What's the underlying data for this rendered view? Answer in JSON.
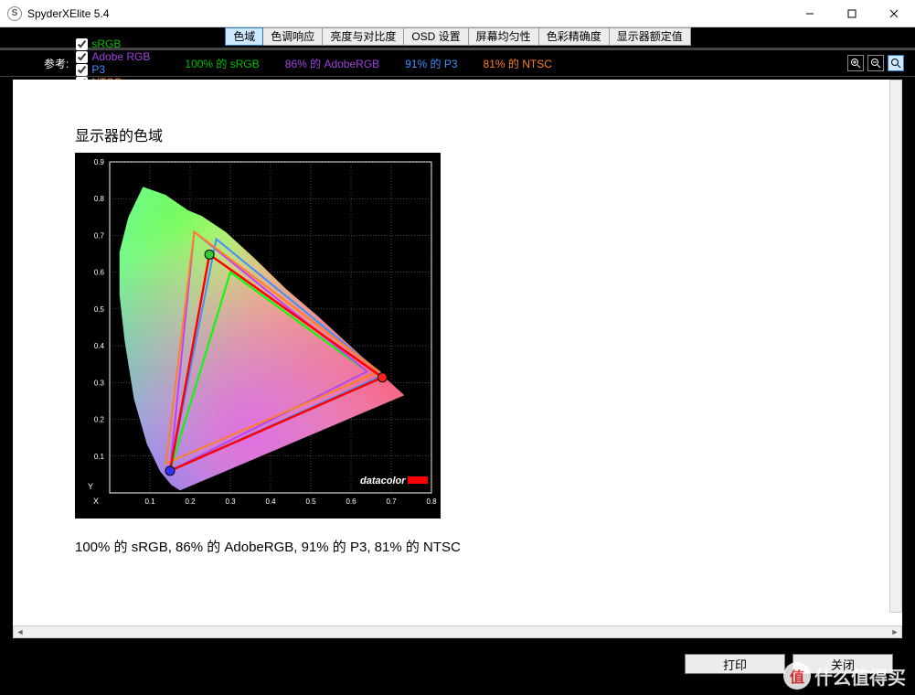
{
  "window": {
    "title": "SpyderXElite 5.4",
    "icon_letter": "S"
  },
  "tabs": [
    {
      "label": "色域",
      "active": true
    },
    {
      "label": "色调响应",
      "active": false
    },
    {
      "label": "亮度与对比度",
      "active": false
    },
    {
      "label": "OSD 设置",
      "active": false
    },
    {
      "label": "屏幕均匀性",
      "active": false
    },
    {
      "label": "色彩精确度",
      "active": false
    },
    {
      "label": "显示器额定值",
      "active": false
    }
  ],
  "reference": {
    "label": "参考:",
    "items": [
      {
        "name": "sRGB",
        "color": "#00c000",
        "checked": true
      },
      {
        "name": "Adobe RGB",
        "color": "#a040e0",
        "checked": true
      },
      {
        "name": "P3",
        "color": "#4090ff",
        "checked": true
      },
      {
        "name": "NTSC",
        "color": "#ff7f27",
        "checked": true
      }
    ],
    "percentages": [
      {
        "text": "100% 的 sRGB",
        "color": "#00c000"
      },
      {
        "text": "86% 的 AdobeRGB",
        "color": "#a040e0"
      },
      {
        "text": "91% 的 P3",
        "color": "#4090ff"
      },
      {
        "text": "81% 的 NTSC",
        "color": "#ff7f27"
      }
    ]
  },
  "page": {
    "heading": "显示器的色域",
    "summary": "100% 的 sRGB, 86% 的 AdobeRGB, 91% 的 P3, 81% 的 NTSC"
  },
  "chart": {
    "type": "cie-xy-chromaticity",
    "background_color": "#000000",
    "plot_background": "#000000",
    "axis_color": "#ffffff",
    "grid_color": "#888888",
    "tick_fontsize": 8,
    "x_label": "X",
    "y_label": "Y",
    "xlim": [
      0.0,
      0.8
    ],
    "ylim": [
      0.0,
      0.9
    ],
    "xticks": [
      0.1,
      0.2,
      0.3,
      0.4,
      0.5,
      0.6,
      0.7,
      0.8
    ],
    "yticks": [
      0.1,
      0.2,
      0.3,
      0.4,
      0.5,
      0.6,
      0.7,
      0.8,
      0.9
    ],
    "spectral_locus": [
      [
        0.175,
        0.005
      ],
      [
        0.153,
        0.02
      ],
      [
        0.124,
        0.058
      ],
      [
        0.091,
        0.133
      ],
      [
        0.059,
        0.255
      ],
      [
        0.036,
        0.412
      ],
      [
        0.023,
        0.538
      ],
      [
        0.023,
        0.655
      ],
      [
        0.045,
        0.75
      ],
      [
        0.082,
        0.834
      ],
      [
        0.139,
        0.812
      ],
      [
        0.195,
        0.77
      ],
      [
        0.23,
        0.754
      ],
      [
        0.29,
        0.71
      ],
      [
        0.36,
        0.64
      ],
      [
        0.44,
        0.555
      ],
      [
        0.513,
        0.487
      ],
      [
        0.576,
        0.424
      ],
      [
        0.627,
        0.373
      ],
      [
        0.659,
        0.341
      ],
      [
        0.7,
        0.3
      ],
      [
        0.735,
        0.265
      ]
    ],
    "gamuts": {
      "sRGB": {
        "color": "#00ff00",
        "stroke": 2,
        "pts": [
          [
            0.64,
            0.33
          ],
          [
            0.3,
            0.6
          ],
          [
            0.15,
            0.06
          ]
        ]
      },
      "AdobeRGB": {
        "color": "#c040ff",
        "stroke": 2,
        "pts": [
          [
            0.64,
            0.33
          ],
          [
            0.21,
            0.71
          ],
          [
            0.15,
            0.06
          ]
        ]
      },
      "P3": {
        "color": "#4090ff",
        "stroke": 2,
        "pts": [
          [
            0.68,
            0.32
          ],
          [
            0.265,
            0.69
          ],
          [
            0.15,
            0.06
          ]
        ]
      },
      "NTSC": {
        "color": "#ff7f27",
        "stroke": 2,
        "pts": [
          [
            0.67,
            0.33
          ],
          [
            0.21,
            0.71
          ],
          [
            0.14,
            0.08
          ]
        ]
      },
      "Measured": {
        "color": "#ff0000",
        "stroke": 2.5,
        "pts": [
          [
            0.678,
            0.314
          ],
          [
            0.248,
            0.648
          ],
          [
            0.15,
            0.06
          ]
        ]
      }
    },
    "primary_markers": [
      {
        "x": 0.678,
        "y": 0.314,
        "fill": "#ff2020"
      },
      {
        "x": 0.248,
        "y": 0.648,
        "fill": "#30d030"
      },
      {
        "x": 0.15,
        "y": 0.06,
        "fill": "#3030ff"
      }
    ],
    "logo_text": "datacolor",
    "logo_color": "#ffffff",
    "logo_bar_color": "#ff0000"
  },
  "footer": {
    "print": "打印",
    "close": "关闭"
  },
  "watermark": {
    "badge": "值",
    "text": "什么值得买"
  }
}
